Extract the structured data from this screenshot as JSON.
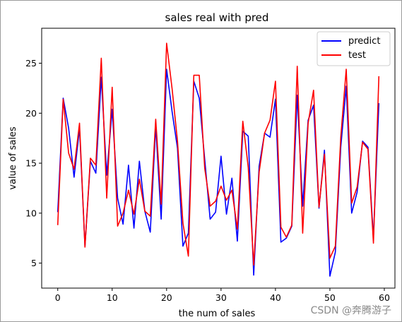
{
  "chart_data": {
    "type": "line",
    "title": "sales real with pred",
    "xlabel": "the num of sales",
    "ylabel": "value of sales",
    "xlim": [
      -2.95,
      61.95
    ],
    "ylim": [
      2.5,
      28.5
    ],
    "xticks": [
      0,
      10,
      20,
      30,
      40,
      50,
      60
    ],
    "yticks": [
      5,
      10,
      15,
      20,
      25
    ],
    "grid": false,
    "legend_position": "top-right",
    "x": [
      0,
      1,
      2,
      3,
      4,
      5,
      6,
      7,
      8,
      9,
      10,
      11,
      12,
      13,
      14,
      15,
      16,
      17,
      18,
      19,
      20,
      21,
      22,
      23,
      24,
      25,
      26,
      27,
      28,
      29,
      30,
      31,
      32,
      33,
      34,
      35,
      36,
      37,
      38,
      39,
      40,
      41,
      42,
      43,
      44,
      45,
      46,
      47,
      48,
      49,
      50,
      51,
      52,
      53,
      54,
      55,
      56,
      57,
      58,
      59
    ],
    "series": [
      {
        "name": "predict",
        "color": "#0000ff",
        "values": [
          10.1,
          21.5,
          18.5,
          13.6,
          18.5,
          6.7,
          15.2,
          14.0,
          23.6,
          13.8,
          20.4,
          11.5,
          8.9,
          14.8,
          8.5,
          15.2,
          10.2,
          8.1,
          18.7,
          9.4,
          24.4,
          20.2,
          16.5,
          6.7,
          8.0,
          23.2,
          21.5,
          15.4,
          9.4,
          10.1,
          15.7,
          9.9,
          13.5,
          7.2,
          18.2,
          17.7,
          3.8,
          14.7,
          18.0,
          17.6,
          21.4,
          7.1,
          7.5,
          8.7,
          21.8,
          10.7,
          19.3,
          20.8,
          10.5,
          16.3,
          3.7,
          6.1,
          16.6,
          22.7,
          10.0,
          12.1,
          17.2,
          16.6,
          7.5,
          21.0
        ]
      },
      {
        "name": "test",
        "color": "#ff0000",
        "values": [
          8.8,
          21.4,
          16.0,
          14.4,
          19.0,
          6.6,
          15.5,
          14.8,
          25.5,
          11.5,
          22.6,
          8.7,
          10.0,
          12.3,
          9.9,
          13.4,
          10.2,
          9.7,
          19.4,
          10.9,
          27.0,
          22.5,
          17.2,
          9.0,
          5.7,
          23.8,
          23.8,
          14.5,
          10.7,
          11.2,
          12.7,
          11.3,
          12.3,
          8.4,
          19.2,
          14.6,
          4.8,
          14.1,
          18.0,
          19.3,
          23.2,
          8.6,
          7.6,
          8.8,
          24.7,
          8.0,
          19.0,
          22.3,
          10.6,
          15.9,
          5.5,
          6.7,
          17.6,
          24.4,
          11.0,
          12.6,
          17.1,
          16.4,
          7.0,
          23.7
        ]
      }
    ]
  },
  "watermark": "CSDN @奔腾游子"
}
